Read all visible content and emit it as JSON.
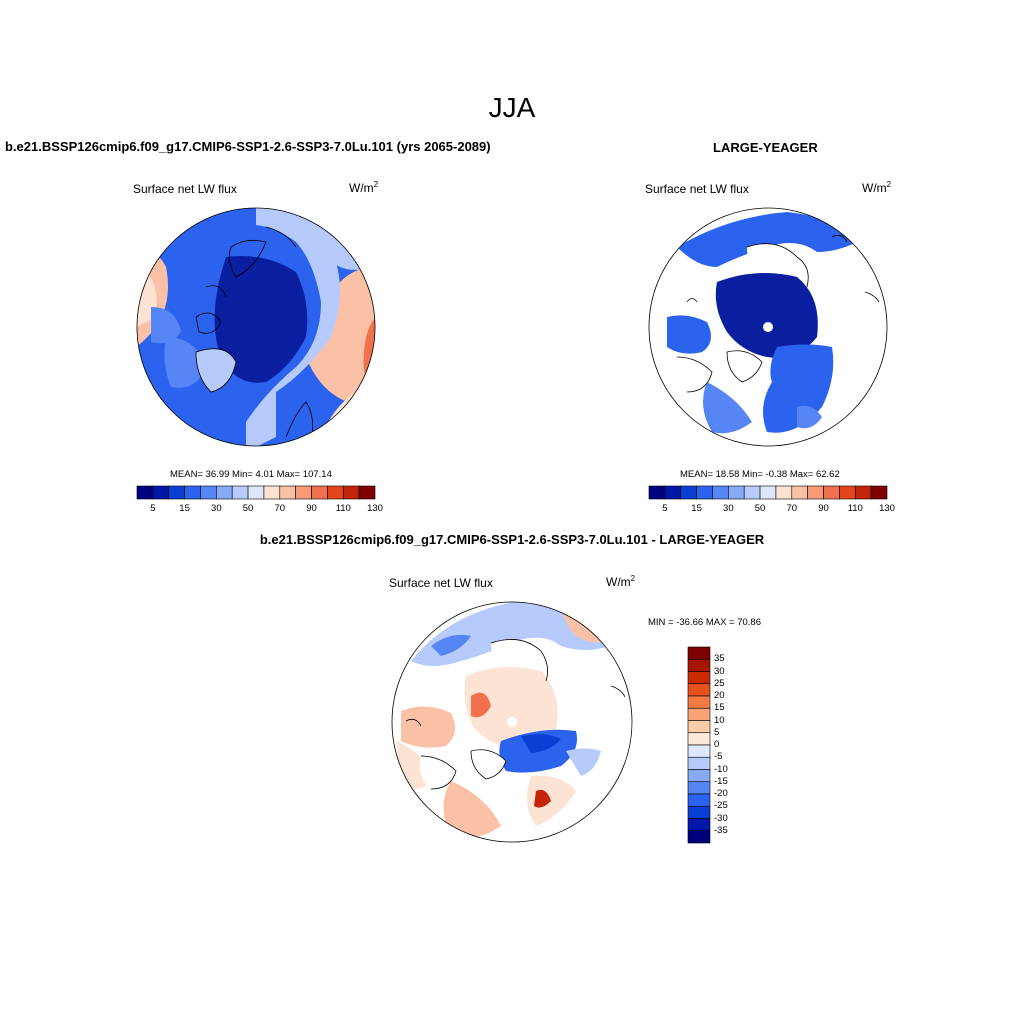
{
  "figure": {
    "title": "JJA"
  },
  "panels": {
    "model": {
      "title": "b.e21.BSSP126cmip6.f09_g17.CMIP6-SSP1-2.6-SSP3-7.0Lu.101 (yrs 2065-2089)",
      "variable": "Surface net LW flux",
      "units_base": "W/m",
      "units_exp": "2",
      "stats": "MEAN=  36.99  Min=    4.01  Max= 107.14"
    },
    "obs": {
      "title": "LARGE-YEAGER",
      "variable": "Surface net LW flux",
      "units_base": "W/m",
      "units_exp": "2",
      "stats": "MEAN=  18.58  Min=  -0.38  Max=  62.62"
    },
    "diff": {
      "title": "b.e21.BSSP126cmip6.f09_g17.CMIP6-SSP1-2.6-SSP3-7.0Lu.101 - LARGE-YEAGER",
      "variable": "Surface net LW flux",
      "units_base": "W/m",
      "units_exp": "2",
      "stats": "MIN = -36.66 MAX =  70.86"
    }
  },
  "colorbars": {
    "abs": {
      "colors": [
        "#00007f",
        "#0018a8",
        "#0a3fd6",
        "#2b62ee",
        "#5686f5",
        "#86a9f8",
        "#b6cbfb",
        "#dde8fd",
        "#fde3d3",
        "#fbc1a6",
        "#f79a77",
        "#f1704d",
        "#e2461f",
        "#c4240a",
        "#7f0000"
      ],
      "tick_labels": [
        "5",
        "15",
        "30",
        "50",
        "70",
        "90",
        "110",
        "130"
      ]
    },
    "diff": {
      "colors": [
        "#7f0000",
        "#a71505",
        "#cc2a05",
        "#e6501c",
        "#f47a45",
        "#f9a377",
        "#fccba9",
        "#fee8d9",
        "#dde8fd",
        "#b6cbfb",
        "#86a9f8",
        "#5686f5",
        "#2b62ee",
        "#0a3fd6",
        "#0018a8",
        "#00007f"
      ],
      "tick_labels": [
        "35",
        "30",
        "25",
        "20",
        "15",
        "10",
        "5",
        "0",
        "-5",
        "-10",
        "-15",
        "-20",
        "-25",
        "-30",
        "-35"
      ]
    }
  },
  "map_colors": {
    "deep_blue": "#0a1fa0",
    "blue": "#2b62ee",
    "mid_blue": "#5686f5",
    "light_blue": "#b6cbfb",
    "pale_blue": "#dde8fd",
    "pale_red": "#fde3d3",
    "light_red": "#fbc1a6",
    "red": "#f1704d",
    "dark_red": "#c4240a",
    "land_white": "#ffffff"
  }
}
